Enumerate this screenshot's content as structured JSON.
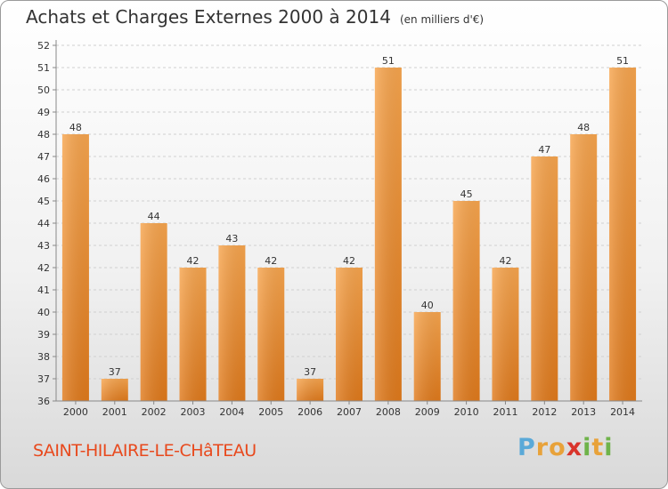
{
  "chart_data": {
    "type": "bar",
    "title": "Achats et Charges Externes 2000 à 2014",
    "unit_note": "(en milliers d'€)",
    "categories": [
      "2000",
      "2001",
      "2002",
      "2003",
      "2004",
      "2005",
      "2006",
      "2007",
      "2008",
      "2009",
      "2010",
      "2011",
      "2012",
      "2013",
      "2014"
    ],
    "values": [
      48,
      37,
      44,
      42,
      43,
      42,
      37,
      42,
      51,
      40,
      45,
      42,
      47,
      48,
      51
    ],
    "ylim": [
      36,
      52
    ],
    "yticks": [
      36,
      37,
      38,
      39,
      40,
      41,
      42,
      43,
      44,
      45,
      46,
      47,
      48,
      49,
      50,
      51,
      52
    ],
    "grid": true,
    "bar_color": "#f29a3f"
  },
  "location": "SAINT-HILAIRE-LE-CHâTEAU",
  "brand": {
    "letters": [
      "P",
      "r",
      "o",
      "x",
      "i",
      "t",
      "i"
    ],
    "colors": [
      "#5aa9d8",
      "#e8a23a",
      "#e8a23a",
      "#d9342b",
      "#6fb34a",
      "#e8a23a",
      "#6fb34a"
    ]
  }
}
